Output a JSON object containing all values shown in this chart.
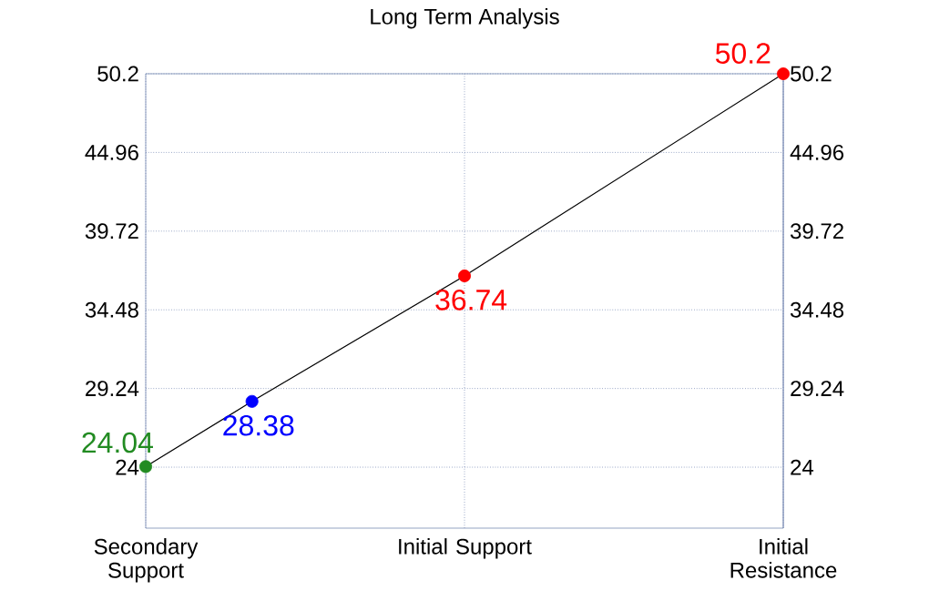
{
  "chart_data": {
    "type": "line",
    "title": "Long Term Analysis",
    "categories": [
      "Secondary Support",
      null,
      null,
      "Initial Support",
      null,
      null,
      "Initial Resistance"
    ],
    "ylim": [
      19.94,
      50.2
    ],
    "yticks": [
      24,
      29.24,
      34.48,
      39.72,
      44.96,
      50.2
    ],
    "y2lim": [
      19.94,
      50.2
    ],
    "y2ticks": [
      24,
      29.24,
      34.48,
      39.72,
      44.96,
      50.2
    ],
    "grid": true,
    "data_labels": true,
    "series": [
      {
        "color": "#000000",
        "marker": "circle",
        "values": [
          24.04,
          28.38,
          null,
          36.74,
          null,
          null,
          50.2
        ],
        "colors": [
          "#228b22",
          "#0000ff",
          null,
          "#ff0000",
          null,
          null,
          "#ff0000"
        ]
      }
    ]
  }
}
